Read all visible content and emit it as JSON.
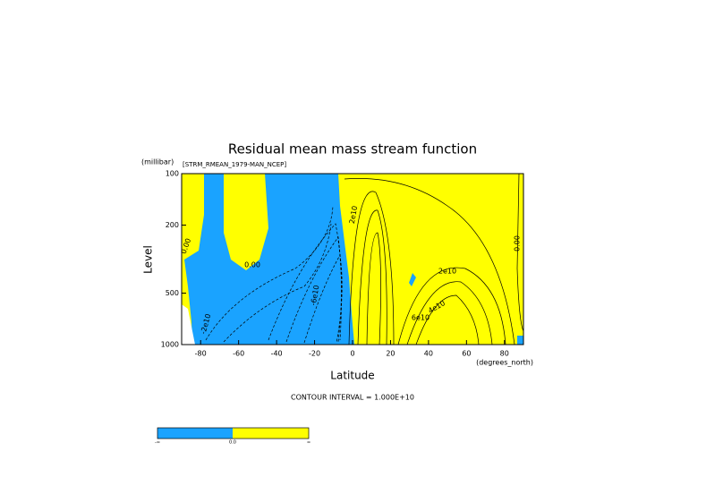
{
  "chart_data": {
    "type": "contour",
    "title": "Residual mean mass stream function",
    "subtitle": "[STRM_RMEAN_1979-MAN_NCEP]",
    "y_unit_label": "(millibar)",
    "x_label": "Latitude",
    "x_unit_label": "(degrees_north)",
    "y_label": "Level",
    "footnote": "CONTOUR INTERVAL = 1.000E+10",
    "xlim": [
      -90,
      90
    ],
    "xticks": [
      -80,
      -60,
      -40,
      -20,
      0,
      20,
      40,
      60,
      80
    ],
    "ylim": [
      100,
      1000
    ],
    "yticks": [
      100,
      200,
      500,
      1000
    ],
    "yscale": "log",
    "y_inverted": true,
    "negative_color": "#1aa3ff",
    "positive_color": "#ffff00",
    "contour_labels": [
      "0.00",
      "0.00",
      "-6e10",
      "-2e10",
      "2e10",
      "2e10",
      "4e10",
      "6e10",
      "0.00"
    ],
    "colorbar_labels": [
      "-∞",
      "0.0",
      "∞"
    ]
  }
}
